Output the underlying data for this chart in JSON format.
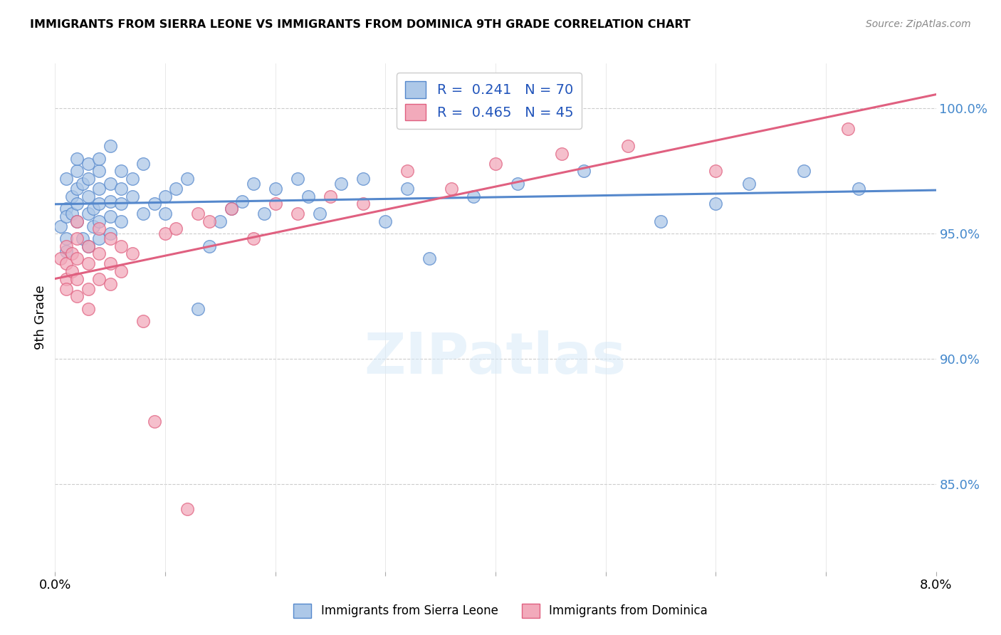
{
  "title": "IMMIGRANTS FROM SIERRA LEONE VS IMMIGRANTS FROM DOMINICA 9TH GRADE CORRELATION CHART",
  "source": "Source: ZipAtlas.com",
  "ylabel": "9th Grade",
  "yticks": [
    "85.0%",
    "90.0%",
    "95.0%",
    "100.0%"
  ],
  "ytick_vals": [
    0.85,
    0.9,
    0.95,
    1.0
  ],
  "xlim": [
    0.0,
    0.08
  ],
  "ylim": [
    0.815,
    1.018
  ],
  "color_sierra": "#adc8e8",
  "color_dominica": "#f2aabb",
  "color_line_sierra": "#5588cc",
  "color_line_dominica": "#e06080",
  "sierra_x": [
    0.0005,
    0.001,
    0.001,
    0.001,
    0.001,
    0.001,
    0.0015,
    0.0015,
    0.002,
    0.002,
    0.002,
    0.002,
    0.002,
    0.0025,
    0.0025,
    0.003,
    0.003,
    0.003,
    0.003,
    0.003,
    0.0035,
    0.0035,
    0.004,
    0.004,
    0.004,
    0.004,
    0.004,
    0.004,
    0.005,
    0.005,
    0.005,
    0.005,
    0.005,
    0.006,
    0.006,
    0.006,
    0.006,
    0.007,
    0.007,
    0.008,
    0.008,
    0.009,
    0.01,
    0.01,
    0.011,
    0.012,
    0.013,
    0.014,
    0.015,
    0.016,
    0.017,
    0.018,
    0.019,
    0.02,
    0.022,
    0.023,
    0.024,
    0.026,
    0.028,
    0.03,
    0.032,
    0.034,
    0.038,
    0.042,
    0.048,
    0.055,
    0.06,
    0.063,
    0.068,
    0.073
  ],
  "sierra_y": [
    0.953,
    0.96,
    0.957,
    0.972,
    0.948,
    0.943,
    0.965,
    0.958,
    0.975,
    0.968,
    0.98,
    0.962,
    0.955,
    0.97,
    0.948,
    0.978,
    0.965,
    0.958,
    0.972,
    0.945,
    0.96,
    0.953,
    0.968,
    0.975,
    0.962,
    0.955,
    0.948,
    0.98,
    0.985,
    0.97,
    0.963,
    0.957,
    0.95,
    0.975,
    0.968,
    0.962,
    0.955,
    0.972,
    0.965,
    0.978,
    0.958,
    0.962,
    0.965,
    0.958,
    0.968,
    0.972,
    0.92,
    0.945,
    0.955,
    0.96,
    0.963,
    0.97,
    0.958,
    0.968,
    0.972,
    0.965,
    0.958,
    0.97,
    0.972,
    0.955,
    0.968,
    0.94,
    0.965,
    0.97,
    0.975,
    0.955,
    0.962,
    0.97,
    0.975,
    0.968
  ],
  "dominica_x": [
    0.0005,
    0.001,
    0.001,
    0.001,
    0.001,
    0.0015,
    0.0015,
    0.002,
    0.002,
    0.002,
    0.002,
    0.002,
    0.003,
    0.003,
    0.003,
    0.003,
    0.004,
    0.004,
    0.004,
    0.005,
    0.005,
    0.005,
    0.006,
    0.006,
    0.007,
    0.008,
    0.009,
    0.01,
    0.011,
    0.012,
    0.013,
    0.014,
    0.016,
    0.018,
    0.02,
    0.022,
    0.025,
    0.028,
    0.032,
    0.036,
    0.04,
    0.046,
    0.052,
    0.06,
    0.072
  ],
  "dominica_y": [
    0.94,
    0.932,
    0.945,
    0.938,
    0.928,
    0.942,
    0.935,
    0.948,
    0.94,
    0.932,
    0.955,
    0.925,
    0.945,
    0.938,
    0.928,
    0.92,
    0.952,
    0.942,
    0.932,
    0.948,
    0.938,
    0.93,
    0.945,
    0.935,
    0.942,
    0.915,
    0.875,
    0.95,
    0.952,
    0.84,
    0.958,
    0.955,
    0.96,
    0.948,
    0.962,
    0.958,
    0.965,
    0.962,
    0.975,
    0.968,
    0.978,
    0.982,
    0.985,
    0.975,
    0.992
  ]
}
